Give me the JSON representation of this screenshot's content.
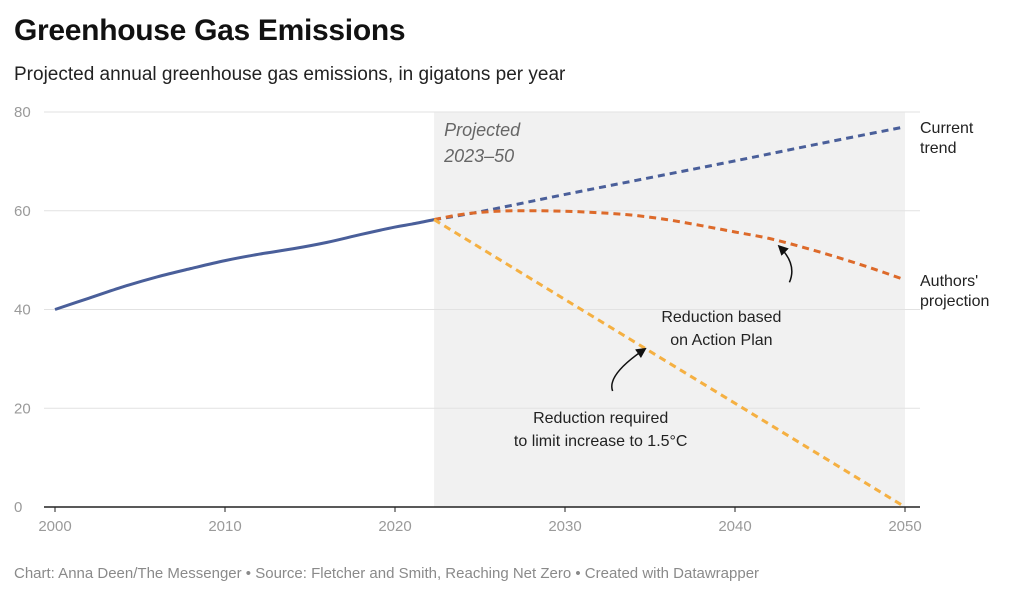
{
  "header": {
    "title": "Greenhouse Gas Emissions",
    "subtitle": "Projected annual greenhouse gas emissions, in gigatons per year"
  },
  "footer": {
    "credit": "Chart: Anna Deen/The Messenger • Source: Fletcher and Smith, Reaching Net Zero • Created with Datawrapper"
  },
  "chart_data": {
    "type": "line",
    "title": "Greenhouse Gas Emissions",
    "subtitle": "Projected annual greenhouse gas emissions, in gigatons per year",
    "xlim": [
      2000,
      2050
    ],
    "ylim": [
      0,
      80
    ],
    "x_ticks": [
      "2000",
      "2010",
      "2020",
      "2030",
      "2040",
      "2050"
    ],
    "y_ticks": [
      "0",
      "20",
      "40",
      "60",
      "80"
    ],
    "grid": "horizontal",
    "shaded_region": {
      "x_start": 2022.3,
      "x_end": 2050,
      "label_line1": "Projected",
      "label_line2": "2023–50"
    },
    "series": [
      {
        "label_line1": "",
        "label_line2": "",
        "color": "#4a5f9a",
        "style": "solid",
        "x": [
          2000,
          2002,
          2004,
          2006,
          2008,
          2010,
          2012,
          2014,
          2016,
          2018,
          2020,
          2021,
          2022.3
        ],
        "y": [
          40,
          42.3,
          44.6,
          46.6,
          48.3,
          49.9,
          51.2,
          52.3,
          53.6,
          55.2,
          56.7,
          57.3,
          58.2
        ]
      },
      {
        "label_line1": "Current",
        "label_line2": "trend",
        "color": "#4a5f9a",
        "style": "dashed",
        "x": [
          2022.3,
          2025,
          2030,
          2035,
          2040,
          2045,
          2050
        ],
        "y": [
          58.2,
          59.8,
          63.3,
          66.7,
          70.1,
          73.6,
          77.0
        ]
      },
      {
        "label_line1": "Authors'",
        "label_line2": "projection",
        "color": "#dd6a2a",
        "style": "dashed",
        "x": [
          2022.3,
          2024,
          2026,
          2028,
          2030,
          2032,
          2034,
          2036,
          2038,
          2040,
          2042,
          2044,
          2046,
          2048,
          2050
        ],
        "y": [
          58.2,
          59.3,
          59.9,
          60.0,
          59.9,
          59.6,
          59.1,
          58.2,
          57.0,
          55.7,
          54.4,
          52.6,
          50.6,
          48.4,
          46.0
        ]
      },
      {
        "label_line1": "",
        "label_line2": "",
        "color": "#f5b042",
        "style": "dashed",
        "x": [
          2022.3,
          2050
        ],
        "y": [
          58.2,
          0
        ]
      }
    ],
    "annotations": [
      {
        "line1": "Reduction based",
        "line2": "on Action Plan",
        "anchor_x": 2039.2,
        "anchor_y": 37.5,
        "arrow_from": [
          2043.2,
          45.5
        ],
        "arrow_to": [
          2042.6,
          52.8
        ]
      },
      {
        "line1": "Reduction required",
        "line2": "to limit increase to 1.5°C",
        "anchor_x": 2032.1,
        "anchor_y": 17.0,
        "arrow_from": [
          2032.8,
          23.5
        ],
        "arrow_to": [
          2034.7,
          32.0
        ]
      }
    ]
  }
}
